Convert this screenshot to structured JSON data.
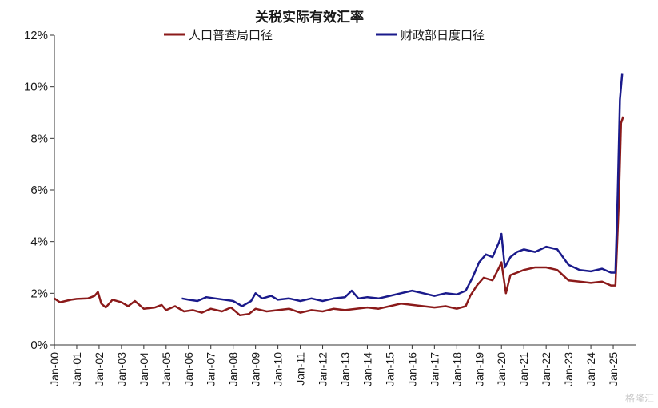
{
  "chart_data": {
    "type": "line",
    "title": "关税实际有效汇率",
    "ylim": [
      0,
      12
    ],
    "yticks": [
      "0%",
      "2%",
      "4%",
      "6%",
      "8%",
      "10%",
      "12%"
    ],
    "ytick_values": [
      0,
      2,
      4,
      6,
      8,
      10,
      12
    ],
    "xticks": [
      "Jan-00",
      "Jan-01",
      "Jan-02",
      "Jan-03",
      "Jan-04",
      "Jan-05",
      "Jan-06",
      "Jan-07",
      "Jan-08",
      "Jan-09",
      "Jan-10",
      "Jan-11",
      "Jan-12",
      "Jan-13",
      "Jan-14",
      "Jan-15",
      "Jan-16",
      "Jan-17",
      "Jan-18",
      "Jan-19",
      "Jan-20",
      "Jan-21",
      "Jan-22",
      "Jan-23",
      "Jan-24",
      "Jan-25"
    ],
    "x_start": 2000.0,
    "x_end": 2026.0,
    "legend_position": "top",
    "grid": false,
    "series": [
      {
        "name": "人口普查局口径",
        "color": "#8b1a1a",
        "points": [
          [
            2000.0,
            1.8
          ],
          [
            2000.25,
            1.65
          ],
          [
            2000.5,
            1.7
          ],
          [
            2000.75,
            1.75
          ],
          [
            2001.0,
            1.78
          ],
          [
            2001.5,
            1.8
          ],
          [
            2001.8,
            1.9
          ],
          [
            2001.95,
            2.05
          ],
          [
            2002.1,
            1.6
          ],
          [
            2002.3,
            1.45
          ],
          [
            2002.6,
            1.75
          ],
          [
            2003.0,
            1.65
          ],
          [
            2003.3,
            1.5
          ],
          [
            2003.6,
            1.7
          ],
          [
            2004.0,
            1.4
          ],
          [
            2004.5,
            1.45
          ],
          [
            2004.8,
            1.55
          ],
          [
            2005.0,
            1.35
          ],
          [
            2005.4,
            1.5
          ],
          [
            2005.8,
            1.3
          ],
          [
            2006.2,
            1.35
          ],
          [
            2006.6,
            1.25
          ],
          [
            2007.0,
            1.4
          ],
          [
            2007.5,
            1.3
          ],
          [
            2007.9,
            1.45
          ],
          [
            2008.3,
            1.15
          ],
          [
            2008.7,
            1.2
          ],
          [
            2009.0,
            1.4
          ],
          [
            2009.5,
            1.3
          ],
          [
            2010.0,
            1.35
          ],
          [
            2010.5,
            1.4
          ],
          [
            2011.0,
            1.25
          ],
          [
            2011.5,
            1.35
          ],
          [
            2012.0,
            1.3
          ],
          [
            2012.5,
            1.4
          ],
          [
            2013.0,
            1.35
          ],
          [
            2013.5,
            1.4
          ],
          [
            2014.0,
            1.45
          ],
          [
            2014.5,
            1.4
          ],
          [
            2015.0,
            1.5
          ],
          [
            2015.5,
            1.6
          ],
          [
            2016.0,
            1.55
          ],
          [
            2016.5,
            1.5
          ],
          [
            2017.0,
            1.45
          ],
          [
            2017.5,
            1.5
          ],
          [
            2018.0,
            1.4
          ],
          [
            2018.4,
            1.5
          ],
          [
            2018.6,
            1.9
          ],
          [
            2018.9,
            2.3
          ],
          [
            2019.2,
            2.6
          ],
          [
            2019.6,
            2.5
          ],
          [
            2019.9,
            3.0
          ],
          [
            2020.0,
            3.2
          ],
          [
            2020.1,
            2.6
          ],
          [
            2020.2,
            2.0
          ],
          [
            2020.4,
            2.7
          ],
          [
            2020.7,
            2.8
          ],
          [
            2021.0,
            2.9
          ],
          [
            2021.5,
            3.0
          ],
          [
            2022.0,
            3.0
          ],
          [
            2022.5,
            2.9
          ],
          [
            2023.0,
            2.5
          ],
          [
            2023.5,
            2.45
          ],
          [
            2024.0,
            2.4
          ],
          [
            2024.5,
            2.45
          ],
          [
            2024.9,
            2.3
          ],
          [
            2025.1,
            2.3
          ],
          [
            2025.25,
            5.5
          ],
          [
            2025.35,
            8.6
          ],
          [
            2025.45,
            8.85
          ]
        ]
      },
      {
        "name": "财政部日度口径",
        "color": "#1a1a8b",
        "points": [
          [
            2005.7,
            1.8
          ],
          [
            2006.0,
            1.75
          ],
          [
            2006.4,
            1.7
          ],
          [
            2006.8,
            1.85
          ],
          [
            2007.2,
            1.8
          ],
          [
            2007.6,
            1.75
          ],
          [
            2008.0,
            1.7
          ],
          [
            2008.4,
            1.5
          ],
          [
            2008.8,
            1.7
          ],
          [
            2009.0,
            2.0
          ],
          [
            2009.3,
            1.8
          ],
          [
            2009.7,
            1.9
          ],
          [
            2010.0,
            1.75
          ],
          [
            2010.5,
            1.8
          ],
          [
            2011.0,
            1.7
          ],
          [
            2011.5,
            1.8
          ],
          [
            2012.0,
            1.7
          ],
          [
            2012.5,
            1.8
          ],
          [
            2013.0,
            1.85
          ],
          [
            2013.3,
            2.1
          ],
          [
            2013.6,
            1.8
          ],
          [
            2014.0,
            1.85
          ],
          [
            2014.5,
            1.8
          ],
          [
            2015.0,
            1.9
          ],
          [
            2015.5,
            2.0
          ],
          [
            2016.0,
            2.1
          ],
          [
            2016.5,
            2.0
          ],
          [
            2017.0,
            1.9
          ],
          [
            2017.5,
            2.0
          ],
          [
            2018.0,
            1.95
          ],
          [
            2018.4,
            2.1
          ],
          [
            2018.7,
            2.6
          ],
          [
            2019.0,
            3.2
          ],
          [
            2019.3,
            3.5
          ],
          [
            2019.6,
            3.4
          ],
          [
            2019.9,
            4.0
          ],
          [
            2020.0,
            4.3
          ],
          [
            2020.15,
            3.0
          ],
          [
            2020.4,
            3.4
          ],
          [
            2020.7,
            3.6
          ],
          [
            2021.0,
            3.7
          ],
          [
            2021.5,
            3.6
          ],
          [
            2022.0,
            3.8
          ],
          [
            2022.5,
            3.7
          ],
          [
            2023.0,
            3.1
          ],
          [
            2023.5,
            2.9
          ],
          [
            2024.0,
            2.85
          ],
          [
            2024.5,
            2.95
          ],
          [
            2024.9,
            2.8
          ],
          [
            2025.1,
            2.8
          ],
          [
            2025.2,
            5.8
          ],
          [
            2025.3,
            9.5
          ],
          [
            2025.4,
            10.5
          ]
        ]
      }
    ]
  },
  "watermark": "格隆汇"
}
